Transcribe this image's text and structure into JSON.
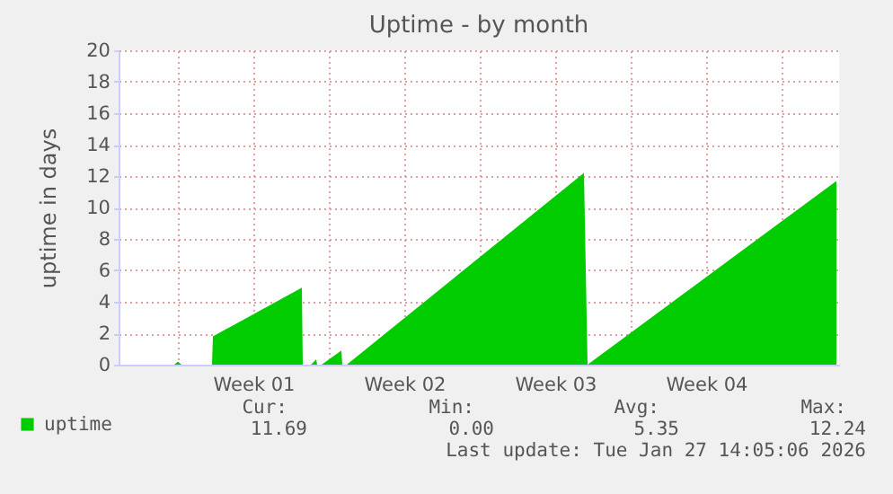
{
  "chart_data": {
    "type": "area",
    "title": "Uptime - by month",
    "ylabel": "uptime in days",
    "x": [
      "2025-12-27T20:00",
      "2025-12-28T00:00",
      "2025-12-28T04:00",
      "2025-12-29T14:00",
      "2025-12-29T15:00",
      "2026-01-02T18:00",
      "2026-01-02T19:00",
      "2026-01-03T04:00",
      "2026-01-03T10:00",
      "2026-01-03T11:00",
      "2026-01-03T16:00",
      "2026-01-04T14:00",
      "2026-01-04T15:00",
      "2026-01-04T20:00",
      "2026-01-15T20:00",
      "2026-01-16T00:00",
      "2026-01-27T13:00"
    ],
    "series": [
      {
        "name": "uptime",
        "color": "#00cc00",
        "values": [
          0,
          0.2,
          0,
          0,
          1.8,
          4.9,
          0,
          0,
          0.35,
          0,
          0,
          0.9,
          0,
          0,
          12.2,
          0,
          11.69
        ]
      }
    ],
    "xlim": [
      "2025-12-25T06:00",
      "2026-01-27T16:00"
    ],
    "xticks": [
      {
        "value": "2025-12-28",
        "label": null
      },
      {
        "value": "2025-12-31T12:00",
        "label": "Week 01"
      },
      {
        "value": "2026-01-04",
        "label": null
      },
      {
        "value": "2026-01-07T12:00",
        "label": "Week 02"
      },
      {
        "value": "2026-01-11",
        "label": null
      },
      {
        "value": "2026-01-14T12:00",
        "label": "Week 03"
      },
      {
        "value": "2026-01-18",
        "label": null
      },
      {
        "value": "2026-01-21T12:00",
        "label": "Week 04"
      },
      {
        "value": "2026-01-25",
        "label": null
      }
    ],
    "ylim": [
      0,
      20
    ],
    "yticks": [
      0,
      2,
      4,
      6,
      8,
      10,
      12,
      14,
      16,
      18,
      20
    ],
    "grid": true,
    "legend": "bottom left",
    "annotations": [
      "Cur:",
      "11.69",
      "Min:",
      "0.00",
      "Avg:",
      "5.35",
      "Max:",
      "12.24",
      "Last update: Tue Jan 27 14:05:06 2026"
    ]
  }
}
